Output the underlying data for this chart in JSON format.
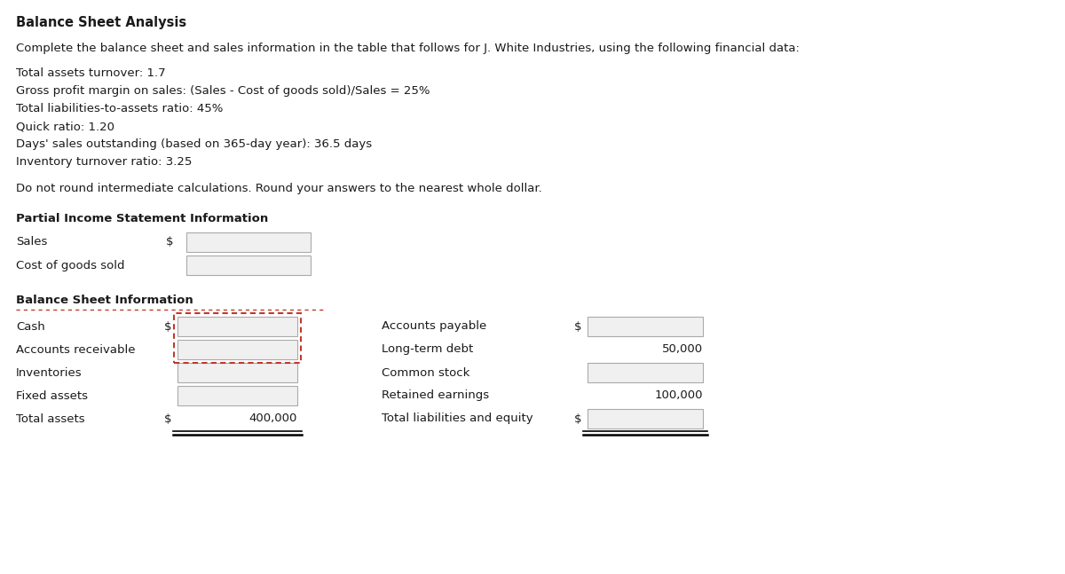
{
  "title": "Balance Sheet Analysis",
  "intro": "Complete the balance sheet and sales information in the table that follows for J. White Industries, using the following financial data:",
  "financial_data": [
    "Total assets turnover: 1.7",
    "Gross profit margin on sales: (Sales - Cost of goods sold)/Sales = 25%",
    "Total liabilities-to-assets ratio: 45%",
    "Quick ratio: 1.20",
    "Days' sales outstanding (based on 365-day year): 36.5 days",
    "Inventory turnover ratio: 3.25"
  ],
  "note": "Do not round intermediate calculations. Round your answers to the nearest whole dollar.",
  "income_section_title": "Partial Income Statement Information",
  "income_rows": [
    {
      "label": "Sales",
      "has_dollar": true,
      "has_box": true,
      "value": null
    },
    {
      "label": "Cost of goods sold",
      "has_dollar": false,
      "has_box": true,
      "value": null
    }
  ],
  "balance_section_title": "Balance Sheet Information",
  "left_rows": [
    {
      "label": "Cash",
      "has_dollar": true,
      "has_box": true,
      "value": null,
      "dotted": true
    },
    {
      "label": "Accounts receivable",
      "has_dollar": false,
      "has_box": true,
      "value": null,
      "dotted": true
    },
    {
      "label": "Inventories",
      "has_dollar": false,
      "has_box": true,
      "value": null,
      "dotted": false
    },
    {
      "label": "Fixed assets",
      "has_dollar": false,
      "has_box": true,
      "value": null,
      "dotted": false
    },
    {
      "label": "Total assets",
      "has_dollar": true,
      "has_box": false,
      "value": "400,000",
      "dotted": false,
      "underline": true
    }
  ],
  "right_rows": [
    {
      "label": "Accounts payable",
      "has_dollar": true,
      "has_box": true,
      "value": null,
      "dotted": false
    },
    {
      "label": "Long-term debt",
      "has_dollar": false,
      "has_box": false,
      "value": "50,000",
      "dotted": false
    },
    {
      "label": "Common stock",
      "has_dollar": false,
      "has_box": true,
      "value": null,
      "dotted": false
    },
    {
      "label": "Retained earnings",
      "has_dollar": false,
      "has_box": false,
      "value": "100,000",
      "dotted": false
    },
    {
      "label": "Total liabilities and equity",
      "has_dollar": true,
      "has_box": true,
      "value": null,
      "dotted": false,
      "underline": true
    }
  ],
  "bg_color": "#ffffff",
  "text_color": "#1a1a1a",
  "box_fill": "#f0f0f0",
  "box_edge": "#aaaaaa",
  "dotted_color": "#c0392b",
  "title_fontsize": 10.5,
  "body_fontsize": 9.5
}
